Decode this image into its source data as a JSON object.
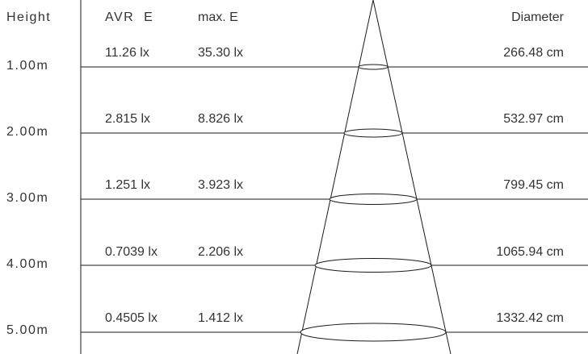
{
  "headers": {
    "height": "Height",
    "avr_e": "AVR  E",
    "max_e": "max. E",
    "diameter": "Diameter"
  },
  "rows": [
    {
      "height": "1.00m",
      "avr_e": "11.26 lx",
      "max_e": "35.30 lx",
      "diameter": "266.48 cm"
    },
    {
      "height": "2.00m",
      "avr_e": "2.815 lx",
      "max_e": "8.826 lx",
      "diameter": "532.97 cm"
    },
    {
      "height": "3.00m",
      "avr_e": "1.251 lx",
      "max_e": "3.923 lx",
      "diameter": "799.45 cm"
    },
    {
      "height": "4.00m",
      "avr_e": "0.7039 lx",
      "max_e": "2.206 lx",
      "diameter": "1065.94 cm"
    },
    {
      "height": "5.00m",
      "avr_e": "0.4505 lx",
      "max_e": "1.412 lx",
      "diameter": "1332.42 cm"
    }
  ],
  "colors": {
    "line": "#1a1a1a",
    "text": "#333333",
    "background": "#ffffff"
  }
}
